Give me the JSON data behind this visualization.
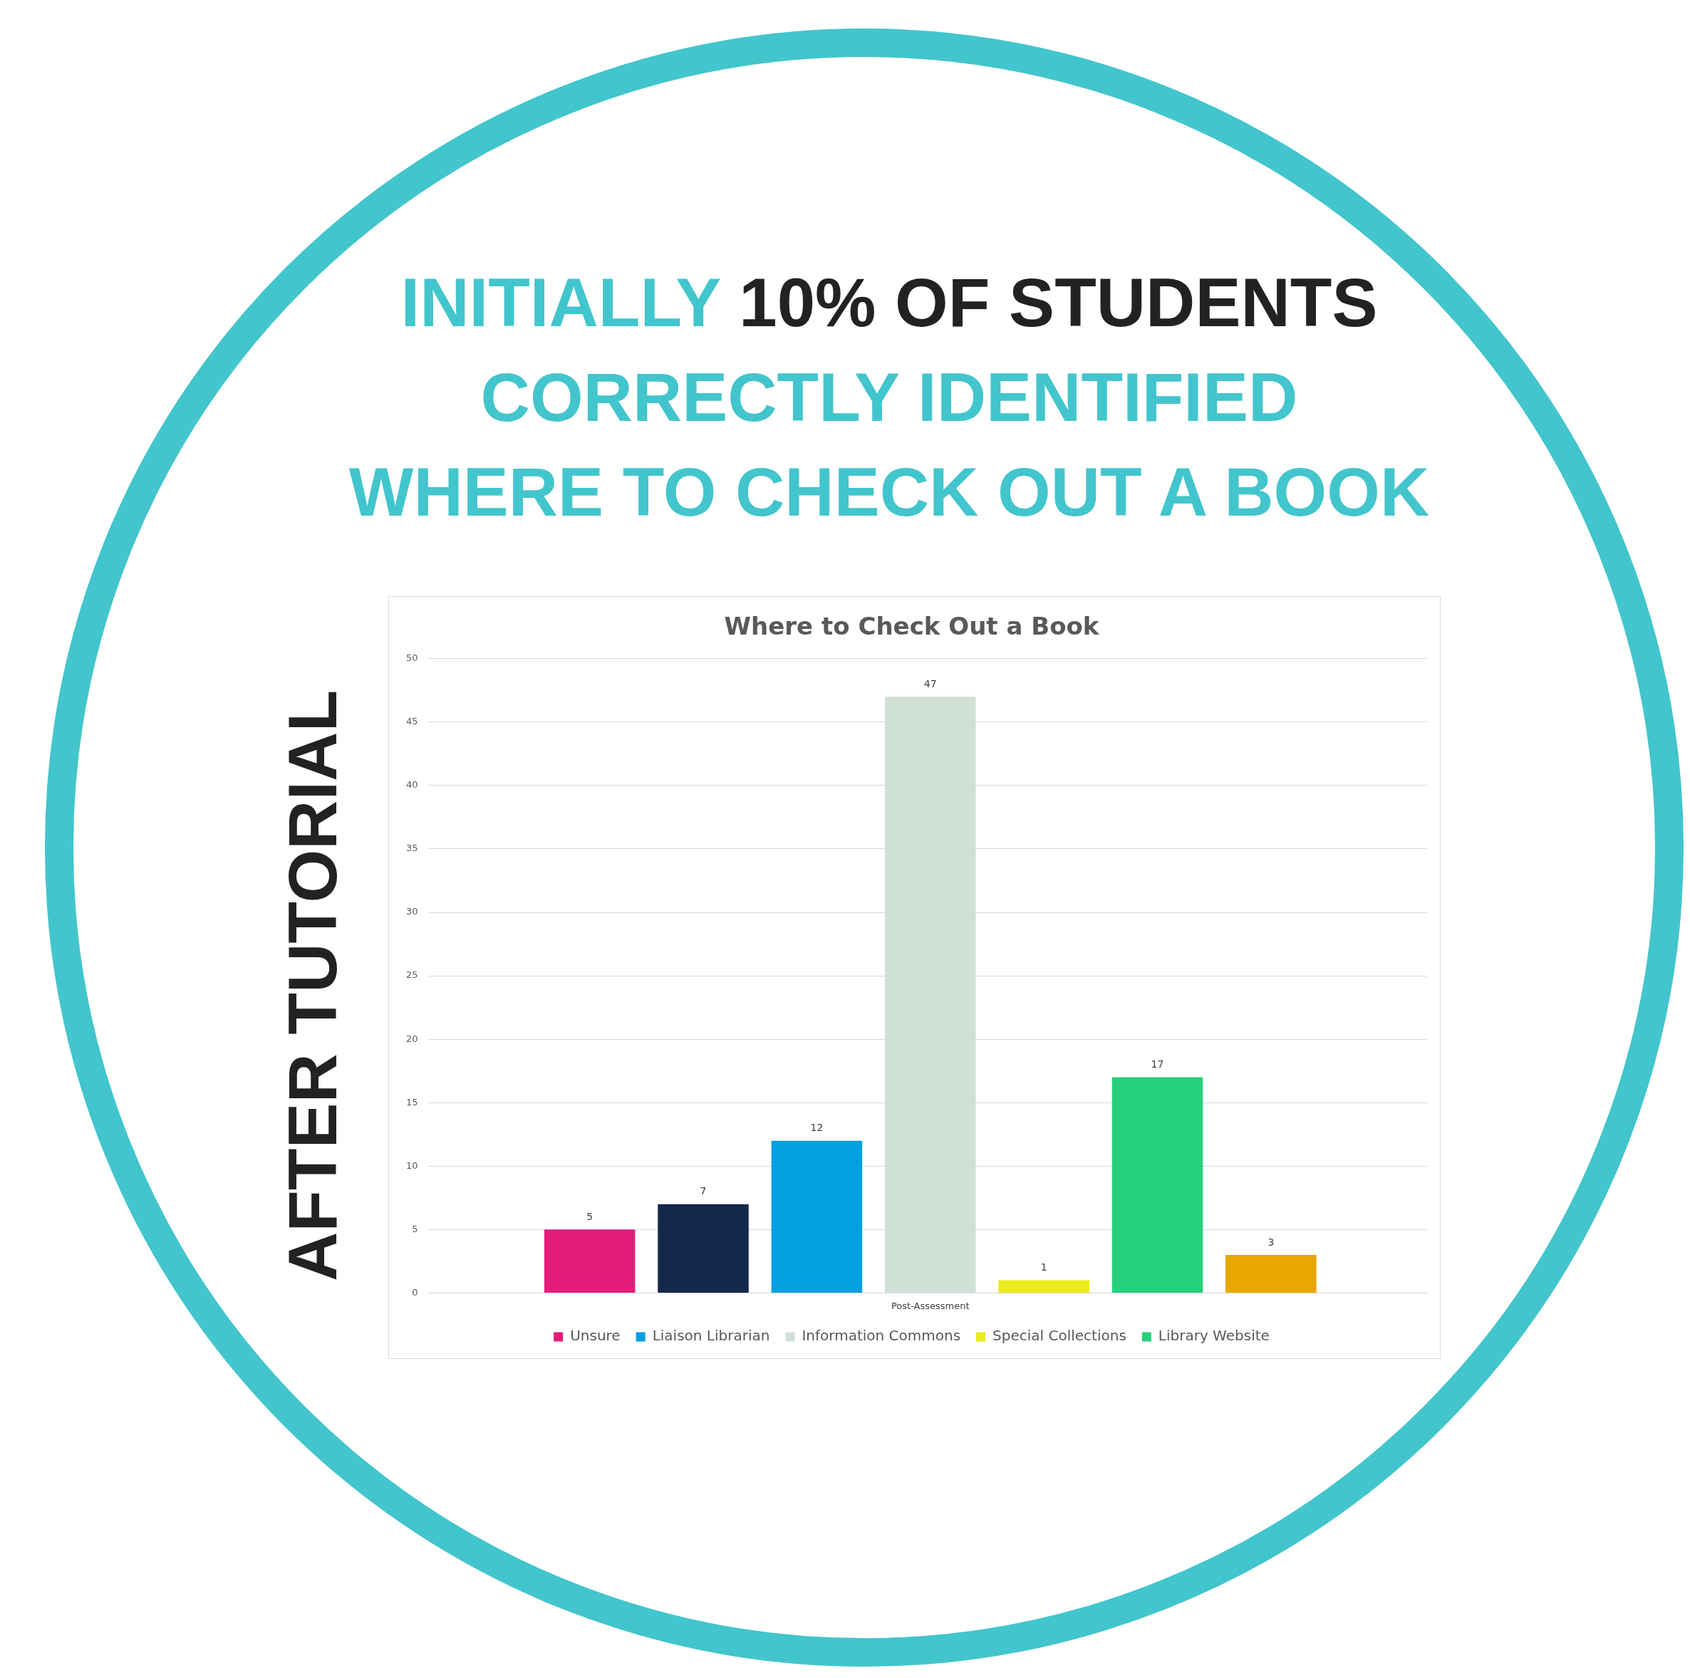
{
  "chart_data": {
    "type": "bar",
    "title": "Where to Check Out a Book",
    "categories": [
      "Post-Assessment"
    ],
    "series": [
      {
        "name": "Unsure",
        "color": "#e31c79",
        "values": [
          5
        ]
      },
      {
        "color": "#14284b",
        "values": [
          7
        ]
      },
      {
        "name": "Liaison Librarian",
        "color": "#049fdf",
        "values": [
          12
        ]
      },
      {
        "name": "Information Commons",
        "color": "#d0e0d6",
        "values": [
          47
        ]
      },
      {
        "name": "Special Collections",
        "color": "#eaea1c",
        "values": [
          1
        ]
      },
      {
        "name": "Library Website",
        "color": "#27d07c",
        "values": [
          17
        ]
      },
      {
        "color": "#e8a700",
        "values": [
          3
        ]
      }
    ],
    "ylim": [
      0,
      50
    ],
    "yticks": [
      0,
      5,
      10,
      15,
      20,
      25,
      30,
      35,
      40,
      45,
      50
    ],
    "grid": "y",
    "legend": "bottom",
    "data_labels": true,
    "annotations": [
      "INITIALLY",
      "10% OF STUDENTS",
      "CORRECTLY IDENTIFIED",
      "WHERE TO CHECK OUT A BOOK",
      "AFTER TUTORIAL"
    ]
  }
}
